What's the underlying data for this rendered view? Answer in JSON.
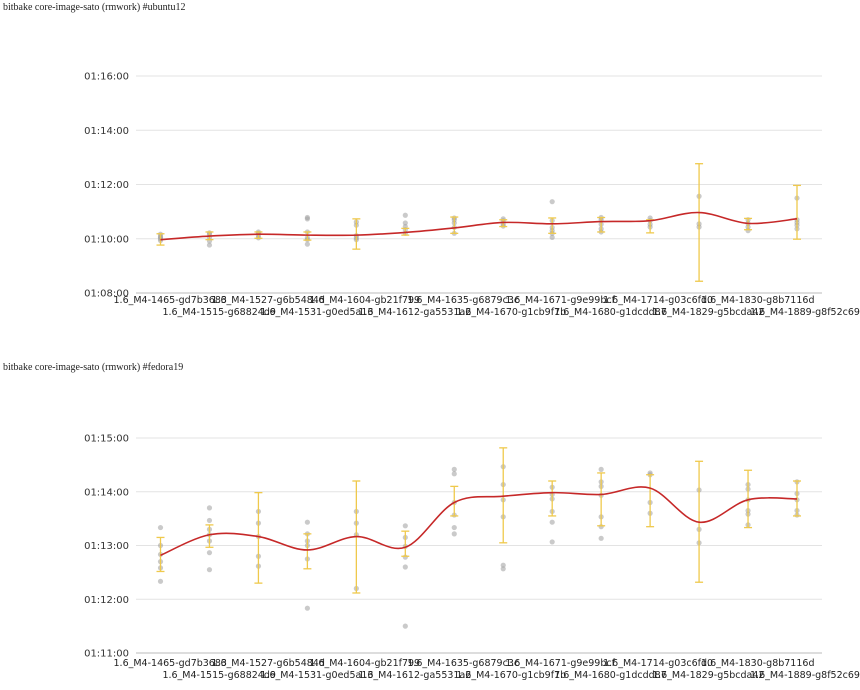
{
  "chart_data": [
    {
      "type": "line",
      "title": "bitbake core-image-sato (rmwork) #ubuntu12",
      "categories": [
        "1.6_M4-1465-gd7b3683",
        "1.6_M4-1515-g68824d9",
        "1.6_M4-1527-g6b5484d",
        "1.6_M4-1531-g0ed5a13",
        "1.6_M4-1604-gb21f799",
        "1.6_M4-1612-ga5531a2",
        "1.6_M4-1635-g6879c3c",
        "1.6_M4-1670-g1cb9f7b",
        "1.6_M4-1671-g9e99bcf",
        "1.6_M4-1680-g1dcdd87",
        "1.6_M4-1714-g03c6fd0",
        "1.6_M4-1829-g5bcda42",
        "1.6_M4-1830-g8b7116d",
        "1.6_M4-1889-g8f52c69"
      ],
      "y_unit": "seconds",
      "ylim": [
        4080,
        4560
      ],
      "yticks": [
        4080,
        4200,
        4320,
        4440,
        4560
      ],
      "ytick_labels": [
        "01:08:00",
        "01:10:00",
        "01:12:00",
        "01:14:00",
        "01:16:00"
      ],
      "grid": true,
      "series": [
        {
          "values": [
            4198,
            4206,
            4210,
            4208,
            4208,
            4214,
            4224,
            4236,
            4233,
            4238,
            4240,
            4258,
            4234,
            4244
          ],
          "error_low": [
            4186,
            4198,
            4201,
            4197,
            4177,
            4208,
            4212,
            4227,
            4212,
            4215,
            4213,
            4106,
            4220,
            4199
          ],
          "error_high": [
            4211,
            4215,
            4215,
            4215,
            4244,
            4223,
            4248,
            4242,
            4246,
            4247,
            4242,
            4366,
            4245,
            4318
          ],
          "samples": [
            [
              4196,
              4203,
              4205,
              4200,
              4210
            ],
            [
              4186,
              4195,
              4203,
              4210,
              4213
            ],
            [
              4202,
              4207,
              4212,
              4215
            ],
            [
              4188,
              4198,
              4202,
              4215,
              4244,
              4247
            ],
            [
              4198,
              4202,
              4207,
              4230,
              4237
            ],
            [
              4212,
              4220,
              4227,
              4235,
              4252
            ],
            [
              4212,
              4225,
              4235,
              4242,
              4246
            ],
            [
              4228,
              4232,
              4240,
              4244
            ],
            [
              4203,
              4212,
              4218,
              4225,
              4240,
              4282
            ],
            [
              4215,
              4222,
              4232,
              4242,
              4247
            ],
            [
              4226,
              4232,
              4240,
              4246
            ],
            [
              4226,
              4233,
              4294
            ],
            [
              4218,
              4226,
              4234,
              4242
            ],
            [
              4222,
              4230,
              4236,
              4242,
              4290
            ]
          ]
        }
      ]
    },
    {
      "type": "line",
      "title": "bitbake core-image-sato (rmwork) #fedora19",
      "categories": [
        "1.6_M4-1465-gd7b3683",
        "1.6_M4-1515-g68824d9",
        "1.6_M4-1527-g6b5484d",
        "1.6_M4-1531-g0ed5a13",
        "1.6_M4-1604-gb21f799",
        "1.6_M4-1612-ga5531a2",
        "1.6_M4-1635-g6879c3c",
        "1.6_M4-1670-g1cb9f7b",
        "1.6_M4-1671-g9e99bcf",
        "1.6_M4-1680-g1dcdd87",
        "1.6_M4-1714-g03c6fd0",
        "1.6_M4-1829-g5bcda42",
        "1.6_M4-1830-g8b7116d",
        "1.6_M4-1889-g8f52c69"
      ],
      "y_unit": "seconds",
      "ylim": [
        4260,
        4500
      ],
      "yticks": [
        4260,
        4320,
        4380,
        4440,
        4500
      ],
      "ytick_labels": [
        "01:11:00",
        "01:12:00",
        "01:13:00",
        "01:14:00",
        "01:15:00"
      ],
      "grid": true,
      "series": [
        {
          "values": [
            4369,
            4392,
            4390,
            4375,
            4390,
            4378,
            4428,
            4435,
            4439,
            4437,
            4444,
            4406,
            4431,
            4432
          ],
          "error_low": [
            4351,
            4378,
            4338,
            4354,
            4327,
            4368,
            4413,
            4383,
            4413,
            4402,
            4401,
            4339,
            4400,
            4413
          ],
          "error_high": [
            4389,
            4403,
            4439,
            4393,
            4452,
            4396,
            4446,
            4489,
            4452,
            4461,
            4459,
            4474,
            4464,
            4452
          ],
          "samples": [
            [
              4340,
              4355,
              4362,
              4370,
              4380,
              4400
            ],
            [
              4353,
              4372,
              4385,
              4392,
              4398,
              4408,
              4422
            ],
            [
              4357,
              4368,
              4390,
              4405,
              4418
            ],
            [
              4310,
              4365,
              4380,
              4385,
              4393,
              4406
            ],
            [
              4332,
              4392,
              4405,
              4418
            ],
            [
              4290,
              4356,
              4367,
              4379,
              4389,
              4402
            ],
            [
              4393,
              4400,
              4414,
              4428,
              4460,
              4465
            ],
            [
              4354,
              4358,
              4412,
              4431,
              4448,
              4468
            ],
            [
              4384,
              4406,
              4418,
              4432,
              4437,
              4445
            ],
            [
              4388,
              4401,
              4412,
              4436,
              4446,
              4451,
              4465
            ],
            [
              4416,
              4428,
              4459,
              4461
            ],
            [
              4383,
              4398,
              4442
            ],
            [
              4403,
              4415,
              4419,
              4431,
              4443,
              4448
            ],
            [
              4414,
              4419,
              4431,
              4438,
              4451
            ]
          ]
        }
      ]
    }
  ],
  "colors": {
    "line": "#c62828",
    "error_bar": "#efc94c",
    "sample_dot": "#9e9e9e",
    "grid": "#e3e3e3"
  }
}
